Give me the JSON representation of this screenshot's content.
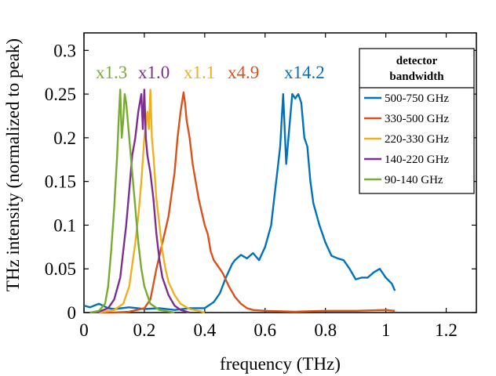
{
  "chart_data": {
    "type": "line",
    "xlabel": "frequency (THz)",
    "ylabel": "THz intensity (normalized to peak)",
    "xlim": [
      0,
      1.3
    ],
    "ylim": [
      0,
      0.32
    ],
    "xticks": [
      0,
      0.2,
      0.4,
      0.6,
      0.8,
      1,
      1.2
    ],
    "xtick_labels": [
      "0",
      "0.2",
      "0.4",
      "0.6",
      "0.8",
      "1",
      "1.2"
    ],
    "yticks": [
      0,
      0.05,
      0.1,
      0.15,
      0.2,
      0.25,
      0.3
    ],
    "ytick_labels": [
      "0",
      "0.05",
      "0.1",
      "0.15",
      "0.2",
      "0.25",
      "0.3"
    ],
    "grid": false,
    "legend": {
      "title_line1": "detector",
      "title_line2": "bandwidth",
      "placement": "top-right"
    },
    "series": [
      {
        "name": "500-750 GHz",
        "color": "#0072BD",
        "multiplier": "x14.2",
        "x": [
          0,
          0.02,
          0.05,
          0.08,
          0.1,
          0.15,
          0.2,
          0.25,
          0.3,
          0.35,
          0.4,
          0.43,
          0.45,
          0.47,
          0.49,
          0.5,
          0.52,
          0.54,
          0.56,
          0.58,
          0.6,
          0.62,
          0.63,
          0.64,
          0.65,
          0.66,
          0.67,
          0.68,
          0.69,
          0.7,
          0.71,
          0.72,
          0.73,
          0.74,
          0.75,
          0.76,
          0.78,
          0.8,
          0.82,
          0.84,
          0.86,
          0.88,
          0.9,
          0.92,
          0.94,
          0.96,
          0.98,
          1.0,
          1.02,
          1.03
        ],
        "y": [
          0.008,
          0.006,
          0.01,
          0.005,
          0.004,
          0.006,
          0.004,
          0.005,
          0.003,
          0.005,
          0.005,
          0.012,
          0.022,
          0.04,
          0.055,
          0.06,
          0.066,
          0.062,
          0.068,
          0.06,
          0.075,
          0.1,
          0.13,
          0.16,
          0.19,
          0.25,
          0.17,
          0.21,
          0.25,
          0.245,
          0.25,
          0.24,
          0.2,
          0.19,
          0.15,
          0.125,
          0.1,
          0.08,
          0.065,
          0.062,
          0.06,
          0.05,
          0.038,
          0.04,
          0.04,
          0.046,
          0.05,
          0.04,
          0.033,
          0.025
        ]
      },
      {
        "name": "330-500 GHz",
        "color": "#D95319",
        "multiplier": "x4.9",
        "x": [
          0.05,
          0.1,
          0.15,
          0.2,
          0.22,
          0.24,
          0.26,
          0.28,
          0.3,
          0.31,
          0.32,
          0.33,
          0.335,
          0.34,
          0.35,
          0.36,
          0.37,
          0.38,
          0.39,
          0.4,
          0.41,
          0.42,
          0.43,
          0.44,
          0.45,
          0.46,
          0.48,
          0.5,
          0.52,
          0.54,
          0.56,
          0.6,
          0.7,
          0.8,
          0.9,
          1.0,
          1.03
        ],
        "y": [
          0,
          0,
          0.001,
          0.005,
          0.015,
          0.05,
          0.08,
          0.11,
          0.16,
          0.2,
          0.23,
          0.252,
          0.24,
          0.22,
          0.2,
          0.17,
          0.15,
          0.13,
          0.115,
          0.1,
          0.09,
          0.07,
          0.06,
          0.055,
          0.05,
          0.045,
          0.03,
          0.018,
          0.01,
          0.005,
          0.003,
          0.002,
          0.001,
          0.002,
          0.002,
          0.003,
          0.002
        ]
      },
      {
        "name": "220-330 GHz",
        "color": "#EDB120",
        "multiplier": "x1.1",
        "x": [
          0.05,
          0.1,
          0.13,
          0.15,
          0.17,
          0.18,
          0.19,
          0.2,
          0.21,
          0.215,
          0.22,
          0.225,
          0.23,
          0.24,
          0.25,
          0.26,
          0.27,
          0.28,
          0.3,
          0.32,
          0.35,
          0.38,
          0.4
        ],
        "y": [
          0,
          0.003,
          0.01,
          0.03,
          0.08,
          0.11,
          0.15,
          0.2,
          0.23,
          0.21,
          0.255,
          0.2,
          0.18,
          0.13,
          0.1,
          0.07,
          0.05,
          0.035,
          0.02,
          0.01,
          0.004,
          0.002,
          0
        ]
      },
      {
        "name": "140-220 GHz",
        "color": "#7E2F8E",
        "multiplier": "x1.0",
        "x": [
          0.02,
          0.05,
          0.08,
          0.1,
          0.12,
          0.13,
          0.14,
          0.15,
          0.16,
          0.17,
          0.18,
          0.19,
          0.195,
          0.2,
          0.205,
          0.21,
          0.22,
          0.23,
          0.24,
          0.25,
          0.26,
          0.28,
          0.3,
          0.32,
          0.35
        ],
        "y": [
          0,
          0.001,
          0.005,
          0.015,
          0.04,
          0.07,
          0.1,
          0.14,
          0.18,
          0.2,
          0.23,
          0.25,
          0.21,
          0.255,
          0.2,
          0.18,
          0.16,
          0.13,
          0.09,
          0.06,
          0.04,
          0.02,
          0.008,
          0.003,
          0
        ]
      },
      {
        "name": "90-140 GHz",
        "color": "#77AC30",
        "multiplier": "x1.3",
        "x": [
          0.02,
          0.05,
          0.07,
          0.08,
          0.09,
          0.1,
          0.11,
          0.115,
          0.12,
          0.125,
          0.13,
          0.135,
          0.14,
          0.15,
          0.16,
          0.17,
          0.18,
          0.19,
          0.2,
          0.22,
          0.25,
          0.3
        ],
        "y": [
          0,
          0.002,
          0.01,
          0.03,
          0.07,
          0.12,
          0.18,
          0.22,
          0.255,
          0.2,
          0.22,
          0.25,
          0.24,
          0.2,
          0.16,
          0.12,
          0.08,
          0.05,
          0.03,
          0.01,
          0.003,
          0
        ]
      }
    ]
  }
}
